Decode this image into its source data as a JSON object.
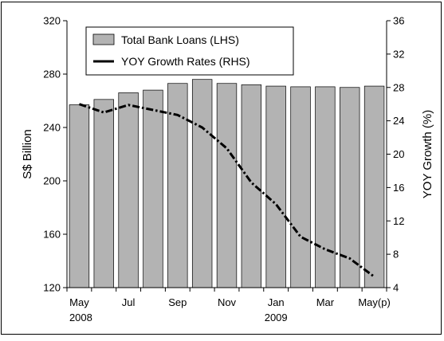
{
  "chart_data": {
    "type": "bar+line",
    "title": "",
    "categories": [
      "May 2008",
      "Jun 2008",
      "Jul 2008",
      "Aug 2008",
      "Sep 2008",
      "Oct 2008",
      "Nov 2008",
      "Dec 2008",
      "Jan 2009",
      "Feb 2009",
      "Mar 2009",
      "Apr 2009",
      "May 2009 (p)"
    ],
    "x_tick_labels": [
      {
        "index": 0,
        "line1": "May",
        "line2": "2008"
      },
      {
        "index": 2,
        "line1": "Jul",
        "line2": ""
      },
      {
        "index": 4,
        "line1": "Sep",
        "line2": ""
      },
      {
        "index": 6,
        "line1": "Nov",
        "line2": ""
      },
      {
        "index": 8,
        "line1": "Jan",
        "line2": "2009"
      },
      {
        "index": 10,
        "line1": "Mar",
        "line2": ""
      },
      {
        "index": 12,
        "line1": "May(p)",
        "line2": ""
      }
    ],
    "series": [
      {
        "name": "Total Bank Loans (LHS)",
        "type": "bar",
        "axis": "left",
        "color": "#b3b3b3",
        "values": [
          257,
          261,
          266,
          268,
          273,
          276,
          273,
          272,
          271,
          270.5,
          270.5,
          270,
          271
        ]
      },
      {
        "name": "YOY Growth Rates (RHS)",
        "type": "line",
        "style": "dash-dot",
        "axis": "right",
        "color": "#000000",
        "values": [
          26.0,
          25.0,
          25.9,
          25.3,
          24.7,
          23.2,
          20.7,
          16.6,
          14.0,
          10.1,
          8.6,
          7.5,
          5.3
        ]
      }
    ],
    "y_left": {
      "label": "S$ Billion",
      "min": 120,
      "max": 320,
      "ticks": [
        120,
        160,
        200,
        240,
        280,
        320
      ]
    },
    "y_right": {
      "label": "YOY Growth (%)",
      "min": 4,
      "max": 36,
      "ticks": [
        4,
        8,
        12,
        16,
        20,
        24,
        28,
        32,
        36
      ]
    },
    "grid": false,
    "legend_position": "top-left"
  }
}
